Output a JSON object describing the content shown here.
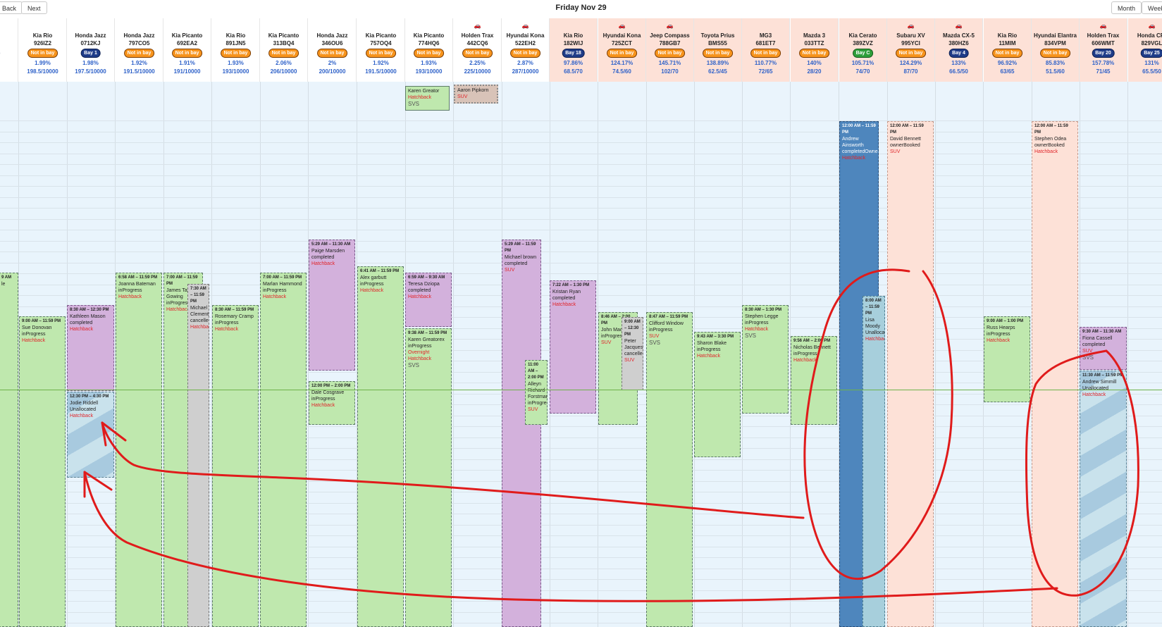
{
  "toolbar": {
    "back_label": "Back",
    "next_label": "Next",
    "date_title": "Friday Nov 29",
    "month_label": "Month",
    "week_label": "Week"
  },
  "colors": {
    "accent_red": "#e1252a",
    "not_in_bay": "#f7941d",
    "bay": "#1f3c88",
    "bay_green": "#2e9e3a",
    "green_booking": "#bfe8ae",
    "purple_booking": "#d3b1dc"
  },
  "vehicles": [
    {
      "name": "nic",
      "plate": "2",
      "badge": "ay",
      "pct": "%",
      "km": "00",
      "over": false,
      "car": false
    },
    {
      "name": "Kia Rio",
      "plate": "926IZ2",
      "badge": "Not in bay",
      "pct": "1.99%",
      "km": "198.5/10000",
      "over": false,
      "car": false
    },
    {
      "name": "Honda Jazz",
      "plate": "0712KJ",
      "badge": "Bay 1",
      "pct": "1.98%",
      "km": "197.5/10000",
      "over": false,
      "car": false
    },
    {
      "name": "Honda Jazz",
      "plate": "797CO5",
      "badge": "Not in bay",
      "pct": "1.92%",
      "km": "191.5/10000",
      "over": false,
      "car": false
    },
    {
      "name": "Kia Picanto",
      "plate": "692EA2",
      "badge": "Not in bay",
      "pct": "1.91%",
      "km": "191/10000",
      "over": false,
      "car": false
    },
    {
      "name": "Kia Rio",
      "plate": "891JN5",
      "badge": "Not in bay",
      "pct": "1.93%",
      "km": "193/10000",
      "over": false,
      "car": false
    },
    {
      "name": "Kia Picanto",
      "plate": "313BQ4",
      "badge": "Not in bay",
      "pct": "2.06%",
      "km": "206/10000",
      "over": false,
      "car": false
    },
    {
      "name": "Honda Jazz",
      "plate": "346OU6",
      "badge": "Not in bay",
      "pct": "2%",
      "km": "200/10000",
      "over": false,
      "car": false
    },
    {
      "name": "Kia Picanto",
      "plate": "757OQ4",
      "badge": "Not in bay",
      "pct": "1.92%",
      "km": "191.5/10000",
      "over": false,
      "car": false
    },
    {
      "name": "Kia Picanto",
      "plate": "774HQ6",
      "badge": "Not in bay",
      "pct": "1.93%",
      "km": "193/10000",
      "over": false,
      "car": false
    },
    {
      "name": "Holden Trax",
      "plate": "442CQ6",
      "badge": "Not in bay",
      "pct": "2.25%",
      "km": "225/10000",
      "over": false,
      "car": true
    },
    {
      "name": "Hyundai Kona",
      "plate": "522EH2",
      "badge": "Not in bay",
      "pct": "2.87%",
      "km": "287/10000",
      "over": false,
      "car": true
    },
    {
      "name": "Kia Rio",
      "plate": "182WIJ",
      "badge": "Bay 18",
      "pct": "97.86%",
      "km": "68.5/70",
      "over": true,
      "car": false
    },
    {
      "name": "Hyundai Kona",
      "plate": "725ZCT",
      "badge": "Not in bay",
      "pct": "124.17%",
      "km": "74.5/60",
      "over": true,
      "car": true
    },
    {
      "name": "Jeep Compass",
      "plate": "788GB7",
      "badge": "Not in bay",
      "pct": "145.71%",
      "km": "102/70",
      "over": true,
      "car": true
    },
    {
      "name": "Toyota Prius",
      "plate": "BMS55",
      "badge": "Not in bay",
      "pct": "138.89%",
      "km": "62.5/45",
      "over": true,
      "car": false
    },
    {
      "name": "MG3",
      "plate": "681ET7",
      "badge": "Not in bay",
      "pct": "110.77%",
      "km": "72/65",
      "over": true,
      "car": false
    },
    {
      "name": "Mazda 3",
      "plate": "033TTZ",
      "badge": "Not in bay",
      "pct": "140%",
      "km": "28/20",
      "over": true,
      "car": false
    },
    {
      "name": "Kia Cerato",
      "plate": "389ZVZ",
      "badge": "Bay C",
      "pct": "105.71%",
      "km": "74/70",
      "over": true,
      "car": false
    },
    {
      "name": "Subaru XV",
      "plate": "995YCI",
      "badge": "Not in bay",
      "pct": "124.29%",
      "km": "87/70",
      "over": true,
      "car": true
    },
    {
      "name": "Mazda CX-5",
      "plate": "380HZ6",
      "badge": "Bay 4",
      "pct": "133%",
      "km": "66.5/50",
      "over": true,
      "car": true
    },
    {
      "name": "Kia Rio",
      "plate": "11MIM",
      "badge": "Not in bay",
      "pct": "96.92%",
      "km": "63/65",
      "over": true,
      "car": false
    },
    {
      "name": "Hyundai Elantra",
      "plate": "834VPM",
      "badge": "Not in bay",
      "pct": "85.83%",
      "km": "51.5/60",
      "over": true,
      "car": false
    },
    {
      "name": "Holden Trax",
      "plate": "606WMT",
      "badge": "Bay 20",
      "pct": "157.78%",
      "km": "71/45",
      "over": true,
      "car": true
    },
    {
      "name": "Honda CR-",
      "plate": "829VGL",
      "badge": "Bay 25",
      "pct": "131%",
      "km": "65.5/50",
      "over": true,
      "car": true
    }
  ],
  "unallocated": [
    {
      "name": "Karen Greator",
      "type": "Hatchback",
      "extra": "SVS"
    },
    {
      "name": "Aaron Pipkorn",
      "type": "SUV"
    }
  ],
  "bookings": [
    {
      "time": "9 AM",
      "name": "le"
    },
    {
      "time": "9:00 AM – 11:59 PM",
      "name": "Sue Donovan",
      "status": "inProgress",
      "type": "Hatchback"
    },
    {
      "time": "8:30 AM – 12:30 PM",
      "name": "Kathleen Mason",
      "status": "completed",
      "type": "Hatchback"
    },
    {
      "time": "12:30 PM – 4:30 PM",
      "name": "Jodie Riddell",
      "status": "Unallocated",
      "type": "Hatchback"
    },
    {
      "time": "6:58 AM – 11:59 PM",
      "name": "Joanna Bateman",
      "status": "inProgress",
      "type": "Hatchback"
    },
    {
      "time": "7:00 AM – 11:59 PM",
      "name": "James Ta Gowing",
      "status": "inProgress",
      "type": "Hatchback"
    },
    {
      "time": "7:30 AM – 11:59 PM",
      "name": "Michael Clement",
      "status": "cancelled",
      "type": "Hatchback"
    },
    {
      "time": "8:30 AM – 11:59 PM",
      "name": "Rosemary Cramp",
      "status": "inProgress",
      "type": "Hatchback"
    },
    {
      "time": "7:00 AM – 11:59 PM",
      "name": "Marlan Hammond",
      "status": "inProgress",
      "type": "Hatchback"
    },
    {
      "time": "5:29 AM – 11:30 AM",
      "name": "Paige Marsden",
      "status": "completed",
      "type": "Hatchback"
    },
    {
      "time": "12:00 PM – 2:00 PM",
      "name": "Dale Cosgrave",
      "status": "inProgress",
      "type": "Hatchback"
    },
    {
      "time": "6:41 AM – 11:59 PM",
      "name": "Alex garbutt",
      "status": "inProgress",
      "type": "Hatchback"
    },
    {
      "time": "6:59 AM – 9:30 AM",
      "name": "Teresa Dziopa",
      "status": "completed",
      "type": "Hatchback"
    },
    {
      "time": "9:38 AM – 11:59 PM",
      "name": "Karen Greatorex",
      "status": "inProgress",
      "type": "Overnight",
      "type2": "Hatchback",
      "extra": "SVS"
    },
    {
      "time": "5:29 AM – 11:59 PM",
      "name": "Michael brown",
      "status": "completed",
      "type": "SUV"
    },
    {
      "time": "11:00 AM – 2:00 PM",
      "name": "Alleyn Richard Forstmann",
      "status": "inProgress",
      "type": "SUV"
    },
    {
      "time": "7:22 AM – 1:30 PM",
      "name": "Kristan Ryan",
      "status": "completed",
      "type": "Hatchback"
    },
    {
      "time": "8:46 AM – 2:00 PM",
      "name": "John Mac",
      "status": "inProgress",
      "type": "SUV"
    },
    {
      "time": "9:00 AM – 12:30 PM",
      "name": "Peter Jacques",
      "status": "cancelled",
      "type": "SUV"
    },
    {
      "time": "8:47 AM – 11:59 PM",
      "name": "Clifford Window",
      "status": "inProgress",
      "type": "SUV",
      "extra": "SVS"
    },
    {
      "time": "9:43 AM – 3:30 PM",
      "name": "Sharon Blake",
      "status": "inProgress",
      "type": "Hatchback"
    },
    {
      "time": "8:30 AM – 1:30 PM",
      "name": "Stephen Legge",
      "status": "inProgress",
      "type": "Hatchback",
      "extra": "SVS"
    },
    {
      "time": "9:56 AM – 2:00 PM",
      "name": "Nicholas Bennett",
      "status": "inProgress",
      "type": "Hatchback"
    },
    {
      "time": "12:00 AM – 11:59 PM",
      "name": "Andrew Ainsworth",
      "status": "completedOwner",
      "type": "Hatchback"
    },
    {
      "time": "8:00 AM – 11:59 PM",
      "name": "Lisa Moody",
      "status": "Unallocated",
      "type": "Hatchback"
    },
    {
      "time": "12:00 AM – 11:59 PM",
      "name": "David Bennett",
      "status": "ownerBooked",
      "type": "SUV"
    },
    {
      "time": "9:00 AM – 1:00 PM",
      "name": "Russ Hearps",
      "status": "inProgress",
      "type": "Hatchback"
    },
    {
      "time": "12:00 AM – 11:59 PM",
      "name": "Stephen Odea",
      "status": "ownerBooked",
      "type": "Hatchback"
    },
    {
      "time": "9:30 AM – 11:30 AM",
      "name": "Fiona Cassell",
      "status": "completed",
      "type": "SUV",
      "extra": "SVS"
    },
    {
      "time": "11:30 AM – 11:59 PM",
      "name": "Andrew Simmill",
      "status": "Unallocated",
      "type": "Hatchback"
    }
  ]
}
